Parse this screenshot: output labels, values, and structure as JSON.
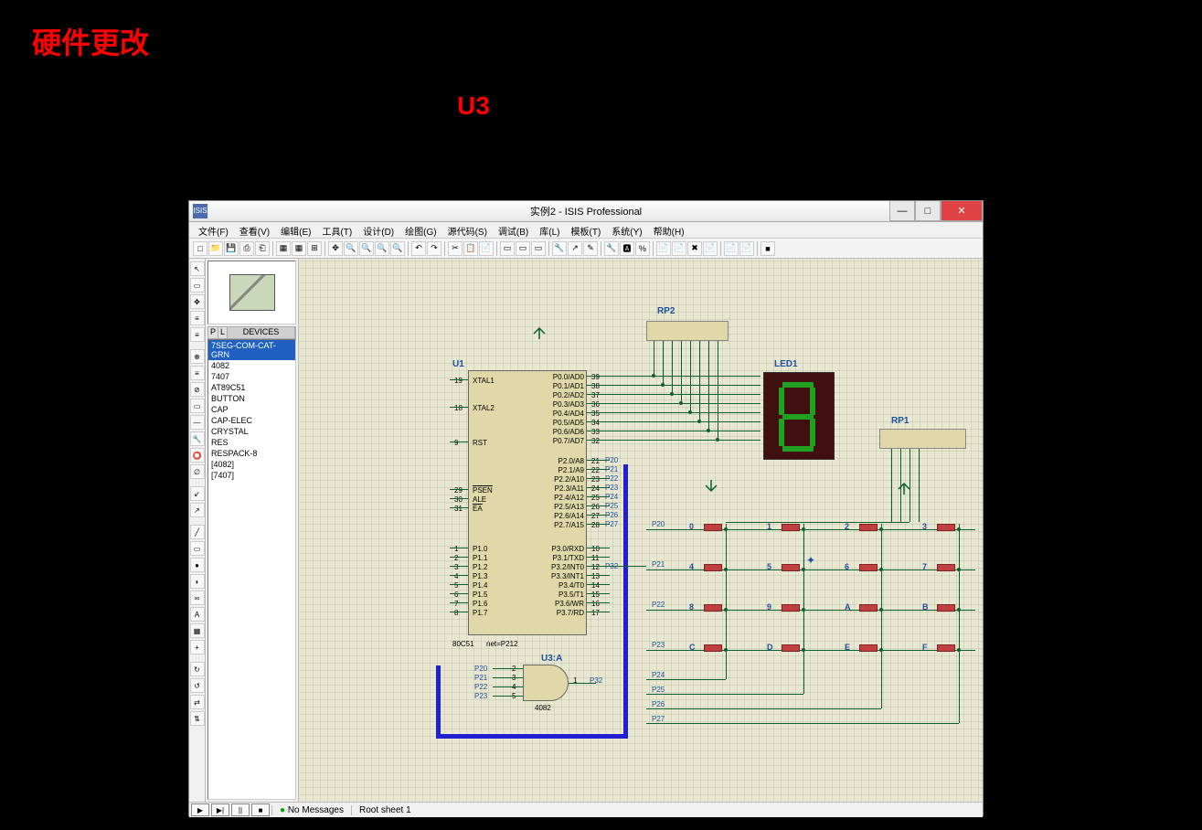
{
  "page": {
    "title": "硬件更改",
    "u3_label": "U3"
  },
  "window": {
    "title": "实例2 - ISIS Professional",
    "icon_text": "ISIS"
  },
  "menu": [
    "文件(F)",
    "查看(V)",
    "编辑(E)",
    "工具(T)",
    "设计(D)",
    "绘图(G)",
    "源代码(S)",
    "调试(B)",
    "库(L)",
    "模板(T)",
    "系统(Y)",
    "帮助(H)"
  ],
  "device_header": {
    "p": "P",
    "l": "L",
    "devices": "DEVICES"
  },
  "devices": [
    "7SEG-COM-CAT-GRN",
    "4082",
    "7407",
    "AT89C51",
    "BUTTON",
    "CAP",
    "CAP-ELEC",
    "CRYSTAL",
    "RES",
    "RESPACK-8",
    "[4082]",
    "[7407]"
  ],
  "selected_device_index": 0,
  "status": {
    "messages": "No Messages",
    "sheet": "Root sheet 1"
  },
  "schematic": {
    "u1": {
      "ref": "U1",
      "part": "80C51",
      "net": "net=P212",
      "left_pins": [
        {
          "num": "19",
          "name": "XTAL1"
        },
        {
          "num": "18",
          "name": "XTAL2"
        },
        {
          "num": "9",
          "name": "RST"
        },
        {
          "num": "29",
          "name": "PSEN",
          "bar": true
        },
        {
          "num": "30",
          "name": "ALE"
        },
        {
          "num": "31",
          "name": "EA",
          "bar": true
        },
        {
          "num": "1",
          "name": "P1.0"
        },
        {
          "num": "2",
          "name": "P1.1"
        },
        {
          "num": "3",
          "name": "P1.2"
        },
        {
          "num": "4",
          "name": "P1.3"
        },
        {
          "num": "5",
          "name": "P1.4"
        },
        {
          "num": "6",
          "name": "P1.5"
        },
        {
          "num": "7",
          "name": "P1.6"
        },
        {
          "num": "8",
          "name": "P1.7"
        }
      ],
      "right_pins": [
        {
          "num": "39",
          "name": "P0.0/AD0"
        },
        {
          "num": "38",
          "name": "P0.1/AD1"
        },
        {
          "num": "37",
          "name": "P0.2/AD2"
        },
        {
          "num": "36",
          "name": "P0.3/AD3"
        },
        {
          "num": "35",
          "name": "P0.4/AD4"
        },
        {
          "num": "34",
          "name": "P0.5/AD5"
        },
        {
          "num": "33",
          "name": "P0.6/AD6"
        },
        {
          "num": "32",
          "name": "P0.7/AD7"
        },
        {
          "num": "21",
          "name": "P2.0/A8",
          "net": "P20"
        },
        {
          "num": "22",
          "name": "P2.1/A9",
          "net": "P21"
        },
        {
          "num": "23",
          "name": "P2.2/A10",
          "net": "P22"
        },
        {
          "num": "24",
          "name": "P2.3/A11",
          "net": "P23"
        },
        {
          "num": "25",
          "name": "P2.4/A12",
          "net": "P24"
        },
        {
          "num": "26",
          "name": "P2.5/A13",
          "net": "P25"
        },
        {
          "num": "27",
          "name": "P2.6/A14",
          "net": "P26"
        },
        {
          "num": "28",
          "name": "P2.7/A15",
          "net": "P27"
        },
        {
          "num": "10",
          "name": "P3.0/RXD"
        },
        {
          "num": "11",
          "name": "P3.1/TXD"
        },
        {
          "num": "12",
          "name": "P3.2/INT0",
          "bar_suffix": true,
          "net": "P32"
        },
        {
          "num": "13",
          "name": "P3.3/INT1",
          "bar_suffix": true
        },
        {
          "num": "14",
          "name": "P3.4/T0"
        },
        {
          "num": "15",
          "name": "P3.5/T1"
        },
        {
          "num": "16",
          "name": "P3.6/WR",
          "bar_suffix": true
        },
        {
          "num": "17",
          "name": "P3.7/RD",
          "bar_suffix": true
        }
      ]
    },
    "u3": {
      "ref": "U3:A",
      "part": "4082",
      "in_pins": [
        "2",
        "3",
        "4",
        "5"
      ],
      "out_pin": "1",
      "in_nets": [
        "P20",
        "P21",
        "P22",
        "P23"
      ],
      "out_net": "P32"
    },
    "rp1": {
      "ref": "RP1"
    },
    "rp2": {
      "ref": "RP2"
    },
    "led1": {
      "ref": "LED1"
    },
    "keypad": {
      "rows": [
        "P20",
        "P21",
        "P22",
        "P23"
      ],
      "cols": [
        "P24",
        "P25",
        "P26",
        "P27"
      ],
      "keys": [
        [
          "0",
          "1",
          "2",
          "3"
        ],
        [
          "4",
          "5",
          "6",
          "7"
        ],
        [
          "8",
          "9",
          "A",
          "B"
        ],
        [
          "C",
          "D",
          "E",
          "F"
        ]
      ]
    },
    "colors": {
      "wire": "#0a6030",
      "wire_highlight": "#2020d0",
      "component_fill": "#e0d8a8",
      "label": "#2050a0",
      "canvas": "#e8e8d0",
      "led_bg": "#401010",
      "led_seg": "#20a020",
      "button": "#c04040"
    }
  }
}
